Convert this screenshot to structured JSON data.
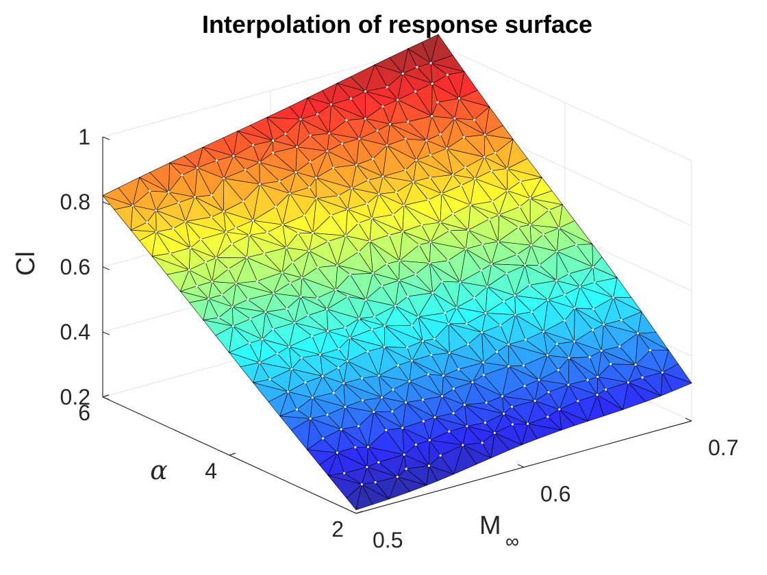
{
  "chart_data": {
    "type": "surface",
    "title": "Interpolation of response surface",
    "xlabel": "M",
    "xlabel_subscript": "∞",
    "ylabel": "α",
    "zlabel": "Cl",
    "xlim": [
      0.5,
      0.7
    ],
    "ylim": [
      2,
      6
    ],
    "zlim": [
      0.2,
      1.0
    ],
    "x_ticks": [
      0.5,
      0.6,
      0.7
    ],
    "x_tick_labels": [
      "0.5",
      "0.6",
      "0.7"
    ],
    "y_ticks": [
      2,
      4,
      6
    ],
    "y_tick_labels": [
      "2",
      "4",
      "6"
    ],
    "z_ticks": [
      0.2,
      0.4,
      0.6,
      0.8,
      1.0
    ],
    "z_tick_labels": [
      "0.2",
      "0.4",
      "0.6",
      "0.8",
      "1"
    ],
    "grid": true,
    "colormap": "jet",
    "surface_corners": [
      {
        "M": 0.5,
        "alpha": 2,
        "Cl": 0.21
      },
      {
        "M": 0.7,
        "alpha": 2,
        "Cl": 0.32
      },
      {
        "M": 0.5,
        "alpha": 6,
        "Cl": 0.82
      },
      {
        "M": 0.7,
        "alpha": 6,
        "Cl": 1.03
      }
    ],
    "surface_model": "bilinear interpolation of Cl over (M, alpha) on a triangulated mesh of sample points"
  }
}
